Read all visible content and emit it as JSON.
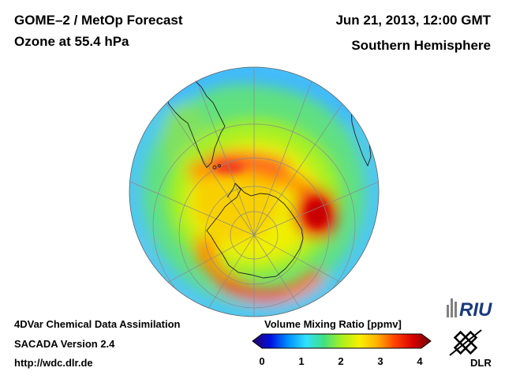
{
  "header": {
    "title_line1": "GOME–2 / MetOp Forecast",
    "title_line2": "Ozone at 55.4 hPa",
    "date": "Jun 21, 2013, 12:00 GMT",
    "hemisphere": "Southern Hemisphere"
  },
  "footer": {
    "line1": "4DVar Chemical Data Assimilation",
    "line2": "SACADA Version 2.4",
    "line3": "http://wdc.dlr.de"
  },
  "colorbar": {
    "label": "Volume Mixing Ratio [ppmv]",
    "ticks": [
      "0",
      "1",
      "2",
      "3",
      "4"
    ],
    "min": 0,
    "max": 4,
    "colors": [
      "#2a0060",
      "#0010e0",
      "#0090ff",
      "#30e0ff",
      "#40e080",
      "#a8f020",
      "#f8f000",
      "#ffb000",
      "#ff4000",
      "#d80000",
      "#700000"
    ]
  },
  "map": {
    "projection": "polar-orthographic",
    "pole": "south"
  },
  "logos": {
    "riu": "RIU",
    "dlr": "DLR"
  }
}
